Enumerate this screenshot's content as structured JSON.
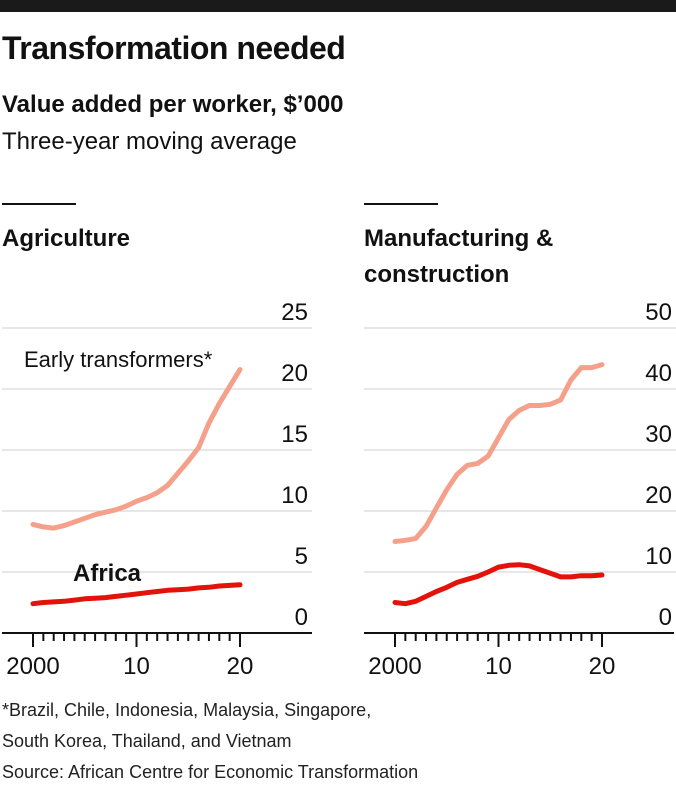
{
  "header": {
    "title": "Transformation needed",
    "subtitle": "Value added per worker, $’000",
    "note": "Three-year moving average"
  },
  "colors": {
    "early": "#F5A08A",
    "africa": "#E3120B",
    "grid": "#cfcfcf",
    "axis": "#111111"
  },
  "chart_data": [
    {
      "type": "line",
      "title": "Agriculture",
      "x_tick_labels": [
        "2000",
        "10",
        "20"
      ],
      "x_range": [
        2000,
        2020
      ],
      "y_range": [
        0,
        25
      ],
      "y_ticks": [
        "0",
        "5",
        "10",
        "15",
        "20",
        "25"
      ],
      "series": [
        {
          "name": "Early transformers*",
          "x": [
            2000,
            2001,
            2002,
            2003,
            2004,
            2005,
            2006,
            2007,
            2008,
            2009,
            2010,
            2011,
            2012,
            2013,
            2014,
            2015,
            2016,
            2017,
            2018,
            2019,
            2020
          ],
          "values": [
            8.9,
            8.7,
            8.6,
            8.8,
            9.1,
            9.4,
            9.7,
            9.9,
            10.1,
            10.4,
            10.8,
            11.1,
            11.5,
            12.1,
            13.1,
            14.1,
            15.2,
            17.2,
            18.8,
            20.2,
            21.6
          ]
        },
        {
          "name": "Africa",
          "x": [
            2000,
            2001,
            2002,
            2003,
            2004,
            2005,
            2006,
            2007,
            2008,
            2009,
            2010,
            2011,
            2012,
            2013,
            2014,
            2015,
            2016,
            2017,
            2018,
            2019,
            2020
          ],
          "values": [
            2.4,
            2.5,
            2.55,
            2.6,
            2.7,
            2.8,
            2.85,
            2.9,
            3.0,
            3.1,
            3.2,
            3.3,
            3.4,
            3.5,
            3.55,
            3.6,
            3.7,
            3.75,
            3.85,
            3.9,
            3.95
          ]
        }
      ]
    },
    {
      "type": "line",
      "title": "Manufacturing & construction",
      "x_tick_labels": [
        "2000",
        "10",
        "20"
      ],
      "x_range": [
        2000,
        2020
      ],
      "y_range": [
        0,
        50
      ],
      "y_ticks": [
        "0",
        "10",
        "20",
        "30",
        "40",
        "50"
      ],
      "series": [
        {
          "name": "Early transformers*",
          "x": [
            2000,
            2001,
            2002,
            2003,
            2004,
            2005,
            2006,
            2007,
            2008,
            2009,
            2010,
            2011,
            2012,
            2013,
            2014,
            2015,
            2016,
            2017,
            2018,
            2019,
            2020
          ],
          "values": [
            15,
            15.2,
            15.5,
            17.5,
            20.5,
            23.5,
            26,
            27.5,
            27.8,
            29,
            32,
            35,
            36.5,
            37.3,
            37.3,
            37.5,
            38.2,
            41.5,
            43.5,
            43.5,
            44
          ]
        },
        {
          "name": "Africa",
          "x": [
            2000,
            2001,
            2002,
            2003,
            2004,
            2005,
            2006,
            2007,
            2008,
            2009,
            2010,
            2011,
            2012,
            2013,
            2014,
            2015,
            2016,
            2017,
            2018,
            2019,
            2020
          ],
          "values": [
            5,
            4.8,
            5.2,
            6,
            6.8,
            7.5,
            8.3,
            8.8,
            9.3,
            10,
            10.8,
            11.1,
            11.2,
            11,
            10.4,
            9.8,
            9.2,
            9.2,
            9.4,
            9.4,
            9.5
          ]
        }
      ]
    }
  ],
  "labels": {
    "early": "Early transformers*",
    "africa": "Africa"
  },
  "footer": {
    "footnote_line1": "*Brazil, Chile, Indonesia, Malaysia, Singapore,",
    "footnote_line2": "South Korea, Thailand, and Vietnam",
    "source": "Source: African Centre for Economic Transformation"
  }
}
